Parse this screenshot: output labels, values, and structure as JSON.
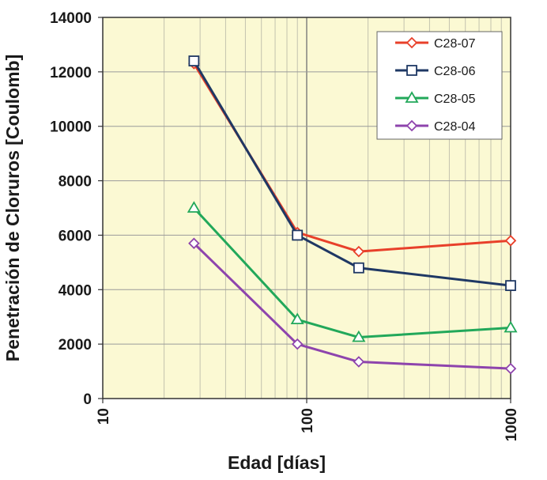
{
  "chart_data": {
    "type": "line",
    "xscale": "log",
    "xlabel": "Edad [días]",
    "ylabel": "Penetración de Cloruros [Coulomb]",
    "xlim": [
      10,
      1000
    ],
    "ylim": [
      0,
      14000
    ],
    "x_ticks": [
      10,
      100,
      1000
    ],
    "x_tick_labels": [
      "10",
      "100",
      "1000"
    ],
    "y_ticks": [
      0,
      2000,
      4000,
      6000,
      8000,
      10000,
      12000,
      14000
    ],
    "y_tick_labels": [
      "0",
      "2000",
      "4000",
      "6000",
      "8000",
      "10000",
      "12000",
      "14000"
    ],
    "grid": true,
    "legend_position": "top-right",
    "series": [
      {
        "name": "C28-07",
        "color": "#e8402a",
        "marker": "diamond",
        "x": [
          28,
          90,
          180,
          1000
        ],
        "y": [
          12300,
          6100,
          5400,
          5800
        ]
      },
      {
        "name": "C28-06",
        "color": "#1f3864",
        "marker": "square",
        "x": [
          28,
          90,
          180,
          1000
        ],
        "y": [
          12400,
          6000,
          4800,
          4150
        ]
      },
      {
        "name": "C28-05",
        "color": "#22a85a",
        "marker": "triangle",
        "x": [
          28,
          90,
          180,
          1000
        ],
        "y": [
          7000,
          2900,
          2250,
          2600
        ]
      },
      {
        "name": "C28-04",
        "color": "#8e44ad",
        "marker": "diamond",
        "x": [
          28,
          90,
          180,
          1000
        ],
        "y": [
          5700,
          2000,
          1350,
          1100
        ]
      }
    ]
  }
}
